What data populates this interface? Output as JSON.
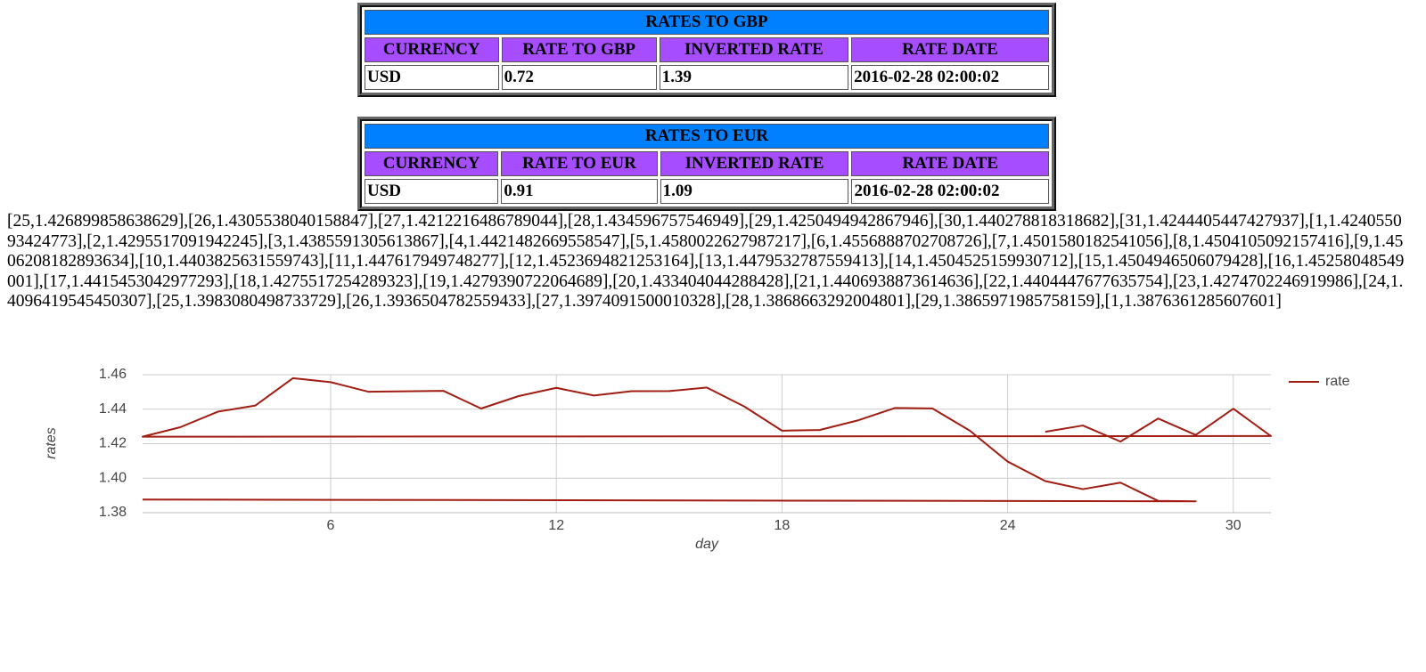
{
  "tables": [
    {
      "title": "RATES TO GBP",
      "headers": [
        "CURRENCY",
        "RATE TO GBP",
        "INVERTED RATE",
        "RATE DATE"
      ],
      "rows": [
        [
          "USD",
          0.72,
          1.39,
          "2016-02-28 02:00:02"
        ]
      ]
    },
    {
      "title": "RATES TO EUR",
      "headers": [
        "CURRENCY",
        "RATE TO EUR",
        "INVERTED RATE",
        "RATE DATE"
      ],
      "rows": [
        [
          "USD",
          0.91,
          1.09,
          "2016-02-28 02:00:02"
        ]
      ]
    }
  ],
  "data_dump": "[25,1.426899858638629],[26,1.4305538040158847],[27,1.4212216486789044],[28,1.434596757546949],[29,1.4250494942867946],[30,1.440278818318682],[31,1.4244405447427937],[1,1.424055093424773],[2,1.4295517091942245],[3,1.4385591305613867],[4,1.4421482669558547],[5,1.4580022627987217],[6,1.4556888702708726],[7,1.4501580182541056],[8,1.4504105092157416],[9,1.4506208182893634],[10,1.4403825631559743],[11,1.447617949748277],[12,1.4523694821253164],[13,1.4479532787559413],[14,1.4504525159930712],[15,1.4504946506079428],[16,1.45258048549001],[17,1.4415453042977293],[18,1.4275517254289323],[19,1.4279390722064689],[20,1.433404044288428],[21,1.4406938873614636],[22,1.4404447677635754],[23,1.4274702246919986],[24,1.4096419545450307],[25,1.3983080498733729],[26,1.3936504782559433],[27,1.3974091500010328],[28,1.3868663292004801],[29,1.3865971985758159],[1,1.3876361285607601]",
  "chart_data": {
    "type": "line",
    "x_label": "day",
    "y_label": "rates",
    "x": [
      25,
      26,
      27,
      28,
      29,
      30,
      31,
      1,
      2,
      3,
      4,
      5,
      6,
      7,
      8,
      9,
      10,
      11,
      12,
      13,
      14,
      15,
      16,
      17,
      18,
      19,
      20,
      21,
      22,
      23,
      24,
      25,
      26,
      27,
      28,
      29,
      1
    ],
    "series": [
      {
        "name": "rate",
        "color": "#a11d12",
        "values": [
          1.426899858638629,
          1.4305538040158847,
          1.4212216486789044,
          1.434596757546949,
          1.4250494942867946,
          1.440278818318682,
          1.4244405447427937,
          1.424055093424773,
          1.4295517091942245,
          1.4385591305613867,
          1.4421482669558547,
          1.4580022627987217,
          1.4556888702708726,
          1.4501580182541056,
          1.4504105092157416,
          1.4506208182893634,
          1.4403825631559743,
          1.447617949748277,
          1.4523694821253164,
          1.4479532787559413,
          1.4504525159930712,
          1.4504946506079428,
          1.45258048549001,
          1.4415453042977293,
          1.4275517254289323,
          1.4279390722064689,
          1.433404044288428,
          1.4406938873614636,
          1.4404447677635754,
          1.4274702246919986,
          1.4096419545450307,
          1.3983080498733729,
          1.3936504782559433,
          1.3974091500010328,
          1.3868663292004801,
          1.3865971985758159,
          1.3876361285607601
        ]
      }
    ],
    "xlim": [
      1,
      31
    ],
    "xticks": [
      6,
      12,
      18,
      24,
      30
    ],
    "ylim": [
      1.38,
      1.46
    ],
    "yticks": [
      1.38,
      {
        "value": 1.4,
        "label": "1.40"
      },
      1.42,
      1.44,
      1.46
    ],
    "grid": true,
    "legend": "right"
  }
}
